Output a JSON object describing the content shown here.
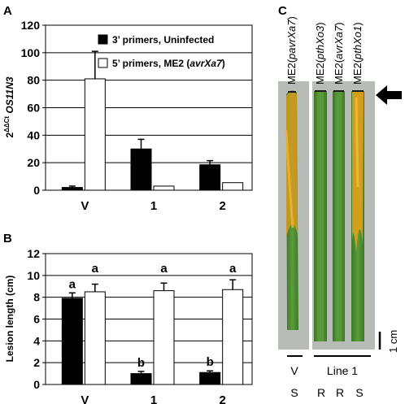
{
  "panels": {
    "a": "A",
    "b": "B",
    "c": "C"
  },
  "chart_data": [
    {
      "type": "bar",
      "panel": "A",
      "ylabel_prefix": "2",
      "ylabel_super": "ΔΔCt",
      "ylabel_gene": " OS11N3",
      "ylim": [
        0,
        120
      ],
      "yticks": [
        0,
        20,
        40,
        60,
        80,
        100,
        120
      ],
      "categories": [
        "V",
        "1",
        "2"
      ],
      "series": [
        {
          "name": "3’ primers, Uninfected",
          "fill": "#000000",
          "values": [
            2,
            30,
            18.5
          ],
          "errors": [
            1,
            7,
            3
          ]
        },
        {
          "name": "5’ primers, ME2 (",
          "name_italic": "avrXa7",
          "name_suffix": ")",
          "fill": "#ffffff",
          "values": [
            81,
            3,
            5.5
          ],
          "errors": [
            20,
            0,
            0
          ]
        }
      ],
      "grid": "horizontal",
      "legend": "top-right"
    },
    {
      "type": "bar",
      "panel": "B",
      "ylabel": "Lesion length (cm)",
      "ylim": [
        0,
        12
      ],
      "yticks": [
        0,
        2,
        4,
        6,
        8,
        10,
        12
      ],
      "categories": [
        "V",
        "1",
        "2"
      ],
      "series": [
        {
          "fill": "#000000",
          "values": [
            7.9,
            1.0,
            1.1
          ],
          "errors": [
            0.5,
            0.2,
            0.15
          ]
        },
        {
          "fill": "#ffffff",
          "values": [
            8.5,
            8.6,
            8.7
          ],
          "errors": [
            0.7,
            0.7,
            0.9
          ]
        }
      ],
      "letters_black": [
        "a",
        "b",
        "b"
      ],
      "letters_white": [
        "a",
        "a",
        "a"
      ],
      "grid": "horizontal"
    }
  ],
  "panel_c": {
    "leaf_labels": [
      {
        "pre": "ME2(",
        "it": "pavrXa7",
        "post": ")"
      },
      {
        "pre": "ME2(",
        "it": "pthXo3",
        "post": ")"
      },
      {
        "pre": "ME2(",
        "it": "avrXa7",
        "post": ")"
      },
      {
        "pre": "ME2(",
        "it": "pthXo1",
        "post": ")"
      }
    ],
    "scale_label": "1 cm",
    "group_v": "V",
    "group_line": "Line 1",
    "phenotypes": [
      "S",
      "R",
      "R",
      "S"
    ],
    "colors": {
      "leaf": "#4c8a30",
      "lesion": "#e0a018",
      "frame": "#b7bcb7"
    }
  }
}
